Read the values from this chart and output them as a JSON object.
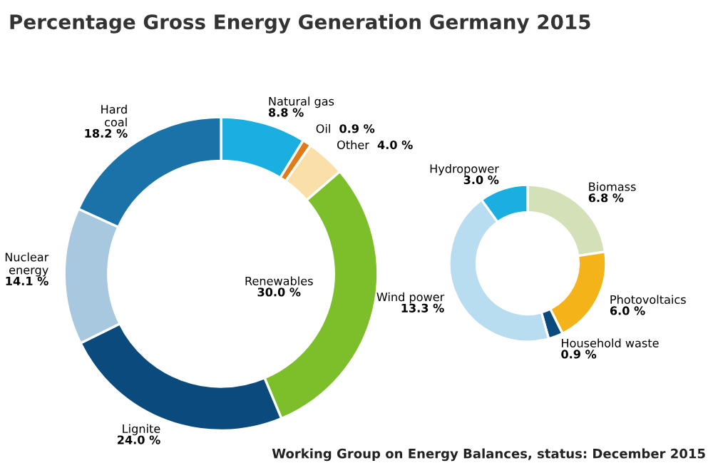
{
  "chart_data": [
    {
      "type": "donut",
      "title": "Percentage Gross Energy Generation Germany 2015",
      "categories": [
        "Natural gas",
        "Oil",
        "Other",
        "Renewables",
        "Lignite",
        "Nuclear energy",
        "Hard coal"
      ],
      "values": [
        8.8,
        0.9,
        4.0,
        30.0,
        24.0,
        14.1,
        18.2
      ],
      "value_labels": [
        "8.8 %",
        "0.9 %",
        "4.0 %",
        "30.0 %",
        "24.0 %",
        "14.1 %",
        "18.2 %"
      ],
      "colors": [
        "#1aafe0",
        "#e07b1a",
        "#fbdfa8",
        "#7cbf2a",
        "#0b4a7c",
        "#a8c8e0",
        "#1a72a8"
      ]
    },
    {
      "type": "donut",
      "annotations": [
        "Working Group on Energy Balances, status: December 2015"
      ],
      "categories": [
        "Biomass",
        "Photovoltaics",
        "Household waste",
        "Wind power",
        "Hydropower"
      ],
      "values": [
        6.8,
        6.0,
        0.9,
        13.3,
        3.0
      ],
      "value_labels": [
        "6.8 %",
        "6.0 %",
        "0.9 %",
        "13.3 %",
        "3.0 %"
      ],
      "colors": [
        "#d3e0b8",
        "#f5b31a",
        "#0b4a7c",
        "#b8dcf0",
        "#1aafe0"
      ]
    }
  ]
}
